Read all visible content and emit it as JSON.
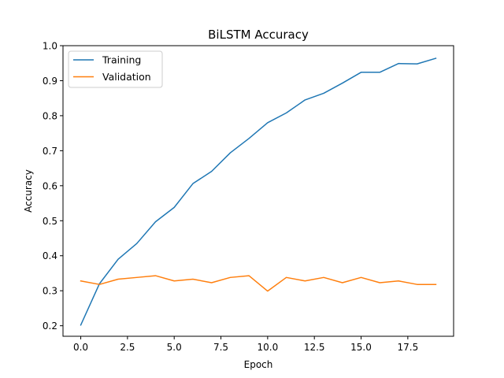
{
  "chart_data": {
    "type": "line",
    "title": "BiLSTM Accuracy",
    "xlabel": "Epoch",
    "ylabel": "Accuracy",
    "xlim": [
      -0.95,
      19.95
    ],
    "ylim": [
      0.17,
      1.0
    ],
    "xticks": [
      0,
      2.5,
      5,
      7.5,
      10,
      12.5,
      15,
      17.5
    ],
    "xtick_labels": [
      "0.0",
      "2.5",
      "5.0",
      "7.5",
      "10.0",
      "12.5",
      "15.0",
      "17.5"
    ],
    "yticks": [
      0.2,
      0.3,
      0.4,
      0.5,
      0.6,
      0.7,
      0.8,
      0.9,
      1.0
    ],
    "ytick_labels": [
      "0.2",
      "0.3",
      "0.4",
      "0.5",
      "0.6",
      "0.7",
      "0.8",
      "0.9",
      "1.0"
    ],
    "grid": false,
    "legend_position": "top-left",
    "x": [
      0,
      1,
      2,
      3,
      4,
      5,
      6,
      7,
      8,
      9,
      10,
      11,
      12,
      13,
      14,
      15,
      16,
      17,
      18,
      19
    ],
    "series": [
      {
        "name": "Training",
        "color": "#1f77b4",
        "values": [
          0.202,
          0.32,
          0.39,
          0.435,
          0.497,
          0.538,
          0.606,
          0.641,
          0.694,
          0.735,
          0.78,
          0.808,
          0.845,
          0.864,
          0.893,
          0.924,
          0.924,
          0.949,
          0.948,
          0.964
        ]
      },
      {
        "name": "Validation",
        "color": "#ff7f0e",
        "values": [
          0.328,
          0.318,
          0.333,
          0.338,
          0.343,
          0.328,
          0.333,
          0.323,
          0.338,
          0.343,
          0.299,
          0.338,
          0.328,
          0.338,
          0.323,
          0.338,
          0.323,
          0.328,
          0.318,
          0.318
        ]
      }
    ]
  }
}
